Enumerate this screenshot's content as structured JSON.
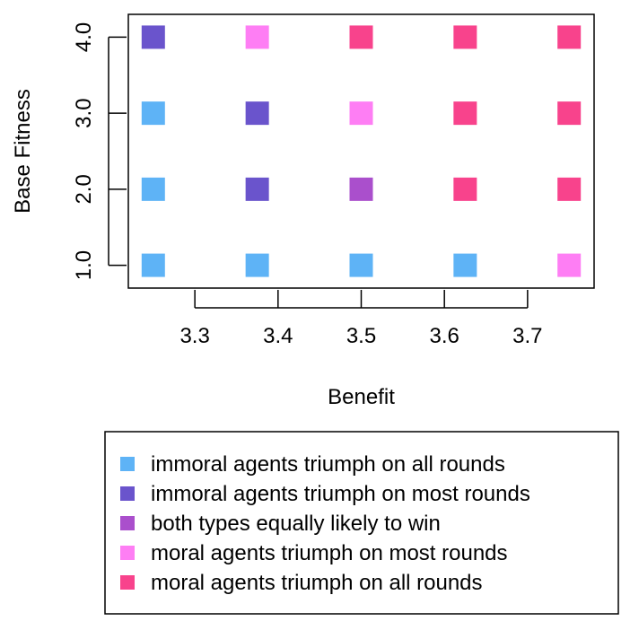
{
  "chart_data": {
    "type": "scatter",
    "xlabel": "Benefit",
    "ylabel": "Base Fitness",
    "x_ticks": [
      3.3,
      3.4,
      3.5,
      3.6,
      3.7
    ],
    "x_tick_labels": [
      "3.3",
      "3.4",
      "3.5",
      "3.6",
      "3.7"
    ],
    "y_ticks": [
      1,
      2,
      3,
      4
    ],
    "y_tick_labels": [
      "1.0",
      "2.0",
      "3.0",
      "4.0"
    ],
    "xlim": [
      3.22,
      3.78
    ],
    "ylim": [
      0.7,
      4.3
    ],
    "grid": false,
    "legend_position": "bottom",
    "categories": [
      {
        "key": "immoral_all",
        "label": "immoral agents triumph on all rounds",
        "color": "#5EB3F6"
      },
      {
        "key": "immoral_most",
        "label": "immoral agents triumph on most rounds",
        "color": "#6A54CC"
      },
      {
        "key": "equal",
        "label": "both types equally likely to win",
        "color": "#AA4FCC"
      },
      {
        "key": "moral_most",
        "label": "moral agents triumph on most rounds",
        "color": "#FE7EF4"
      },
      {
        "key": "moral_all",
        "label": "moral agents triumph on all rounds",
        "color": "#F8438C"
      }
    ],
    "points": [
      {
        "x": 3.25,
        "y": 4,
        "category": "immoral_most"
      },
      {
        "x": 3.375,
        "y": 4,
        "category": "moral_most"
      },
      {
        "x": 3.5,
        "y": 4,
        "category": "moral_all"
      },
      {
        "x": 3.625,
        "y": 4,
        "category": "moral_all"
      },
      {
        "x": 3.75,
        "y": 4,
        "category": "moral_all"
      },
      {
        "x": 3.25,
        "y": 3,
        "category": "immoral_all"
      },
      {
        "x": 3.375,
        "y": 3,
        "category": "immoral_most"
      },
      {
        "x": 3.5,
        "y": 3,
        "category": "moral_most"
      },
      {
        "x": 3.625,
        "y": 3,
        "category": "moral_all"
      },
      {
        "x": 3.75,
        "y": 3,
        "category": "moral_all"
      },
      {
        "x": 3.25,
        "y": 2,
        "category": "immoral_all"
      },
      {
        "x": 3.375,
        "y": 2,
        "category": "immoral_most"
      },
      {
        "x": 3.5,
        "y": 2,
        "category": "equal"
      },
      {
        "x": 3.625,
        "y": 2,
        "category": "moral_all"
      },
      {
        "x": 3.75,
        "y": 2,
        "category": "moral_all"
      },
      {
        "x": 3.25,
        "y": 1,
        "category": "immoral_all"
      },
      {
        "x": 3.375,
        "y": 1,
        "category": "immoral_all"
      },
      {
        "x": 3.5,
        "y": 1,
        "category": "immoral_all"
      },
      {
        "x": 3.625,
        "y": 1,
        "category": "immoral_all"
      },
      {
        "x": 3.75,
        "y": 1,
        "category": "moral_most"
      }
    ]
  }
}
